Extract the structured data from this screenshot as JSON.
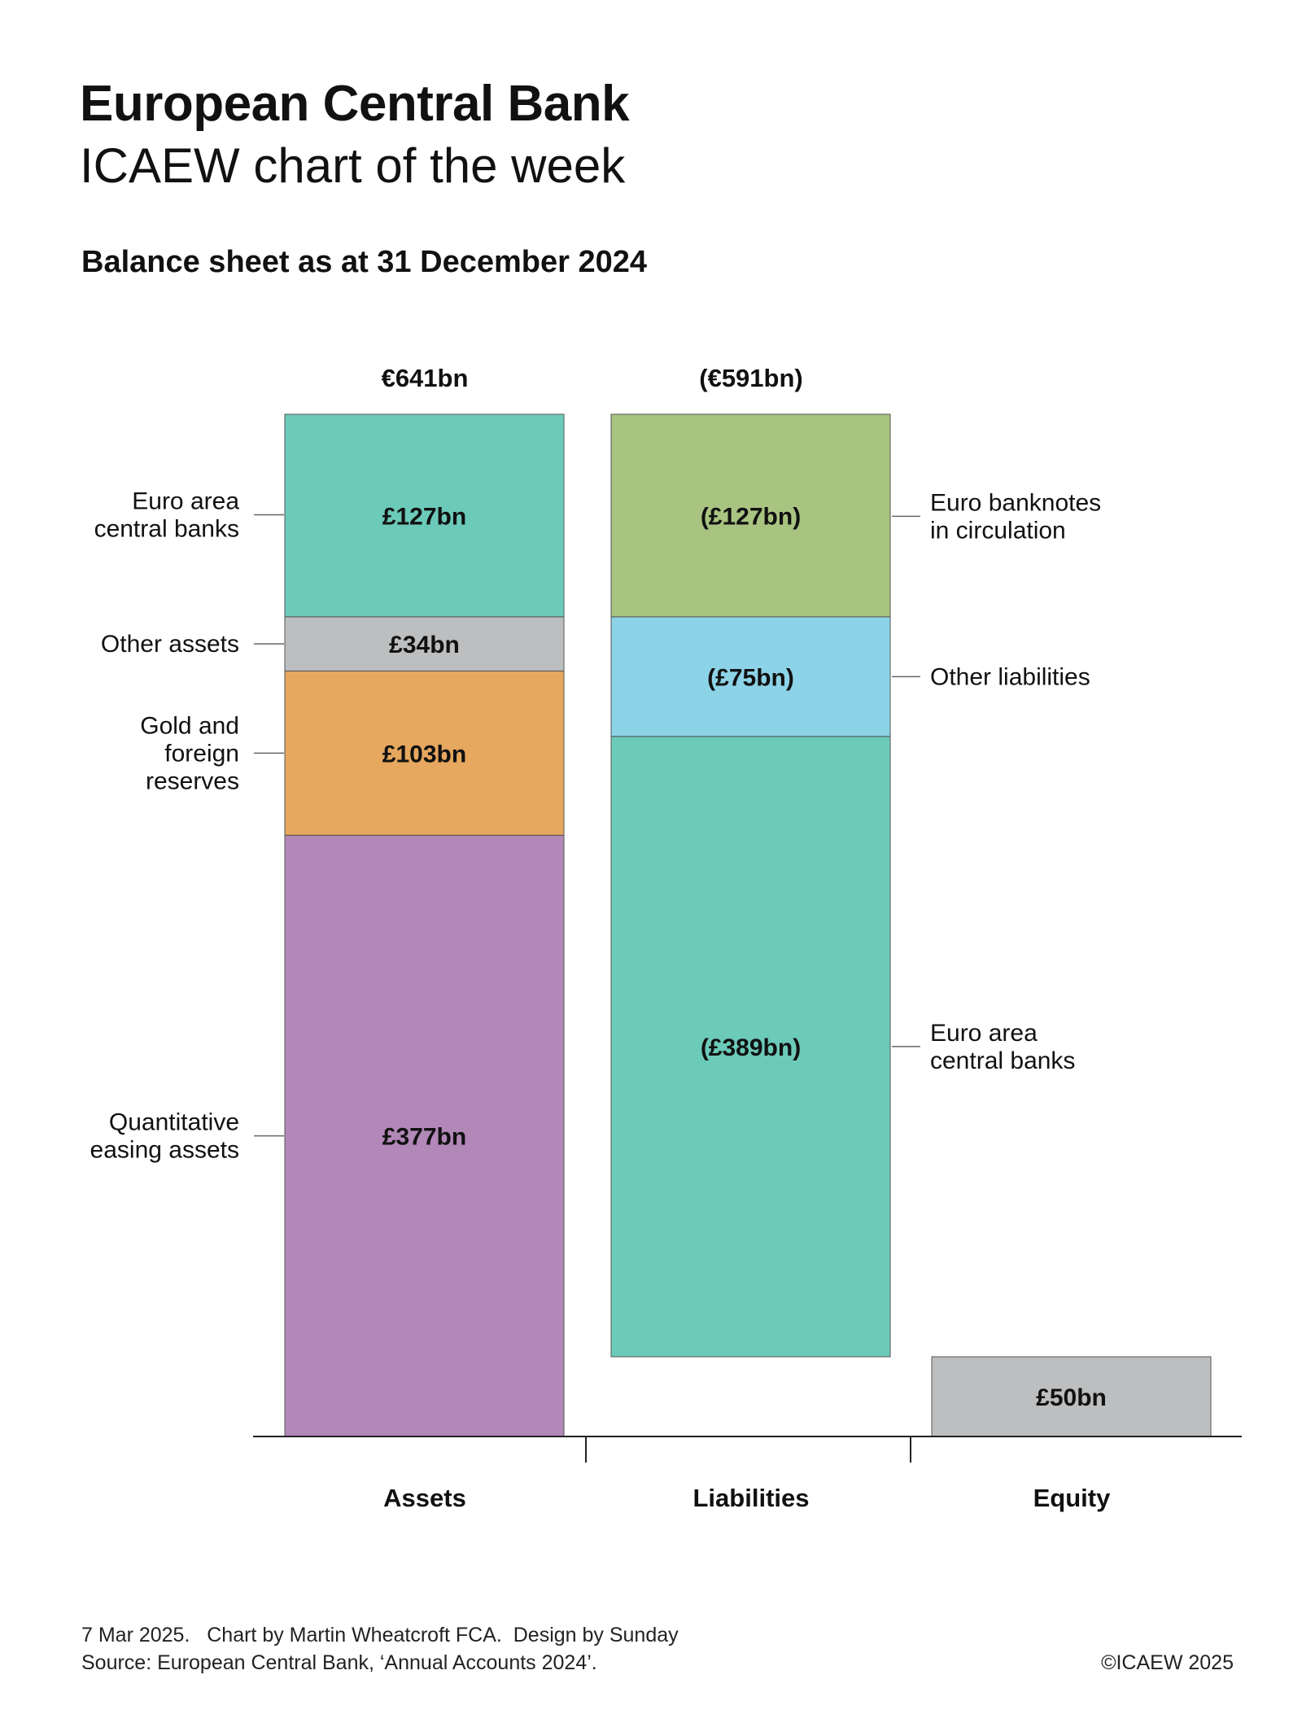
{
  "header": {
    "title": "European Central Bank",
    "subtitle": "ICAEW chart of the week",
    "chart_heading": "Balance sheet as at 31 December 2024"
  },
  "chart_data": {
    "type": "bar",
    "stacked": true,
    "title": "Balance sheet as at 31 December 2024",
    "unit": "€bn",
    "categories": [
      "Assets",
      "Liabilities",
      "Equity"
    ],
    "totals": {
      "Assets": "€641bn",
      "Liabilities": "(€591bn)"
    },
    "series": [
      {
        "category": "Assets",
        "segments": [
          {
            "name": "Quantitative easing assets",
            "value": 377,
            "label": "£377bn",
            "color": "#b288b8"
          },
          {
            "name": "Gold and foreign reserves",
            "value": 103,
            "label": "£103bn",
            "color": "#e6a75e"
          },
          {
            "name": "Other assets",
            "value": 34,
            "label": "£34bn",
            "color": "#bdbebf"
          },
          {
            "name": "Euro area central banks",
            "value": 127,
            "label": "£127bn",
            "color": "#6ccab9"
          }
        ]
      },
      {
        "category": "Liabilities",
        "base": 50,
        "segments": [
          {
            "name": "Euro area central banks",
            "value": 389,
            "label": "(£389bn)",
            "color": "#6ccab9"
          },
          {
            "name": "Other liabilities",
            "value": 75,
            "label": "(£75bn)",
            "color": "#8dd3e8"
          },
          {
            "name": "Euro banknotes in circulation",
            "value": 127,
            "label": "(£127bn)",
            "color": "#a9c481"
          }
        ]
      },
      {
        "category": "Equity",
        "segments": [
          {
            "name": "Equity",
            "value": 50,
            "label": "£50bn",
            "color": "#bdbebf"
          }
        ]
      }
    ],
    "side_labels": {
      "assets": [
        {
          "lines": [
            "Euro area",
            "central banks"
          ],
          "at": 578
        },
        {
          "lines": [
            "Other assets"
          ],
          "at": 497
        },
        {
          "lines": [
            "Gold and",
            "foreign",
            "reserves"
          ],
          "at": 428.5
        },
        {
          "lines": [
            "Quantitative",
            "easing assets"
          ],
          "at": 188.5
        }
      ],
      "liabilities": [
        {
          "lines": [
            "Euro banknotes",
            "in circulation"
          ],
          "at": 577
        },
        {
          "lines": [
            "Other liabilities"
          ],
          "at": 476.5
        },
        {
          "lines": [
            "Euro area",
            "central banks"
          ],
          "at": 244.5
        }
      ]
    },
    "ylim": [
      0,
      641
    ],
    "grid": false,
    "legend": "none"
  },
  "footer": {
    "line1": "7 Mar 2025.   Chart by Martin Wheatcroft FCA.  Design by Sunday",
    "line2": "Source: European Central Bank, ‘Annual Accounts 2024’.",
    "copyright": "©ICAEW 2025"
  }
}
